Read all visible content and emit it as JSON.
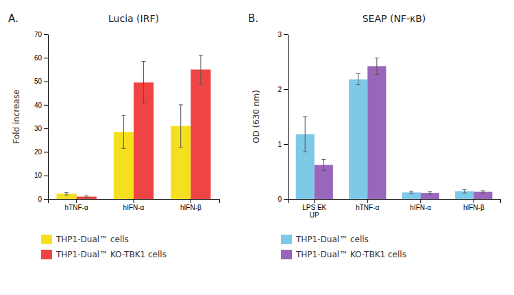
{
  "chart_data": [
    {
      "type": "bar",
      "title": "Lucia (IRF)",
      "ylabel": "Fold increase",
      "annotations": [
        "A."
      ],
      "categories": [
        "hTNF-α",
        "hIFN-α",
        "hIFN-β"
      ],
      "series": [
        {
          "name": "THP1-Dual™ cells",
          "color": "#f5e020",
          "values": [
            2.2,
            28.5,
            31.0
          ],
          "errors": [
            0.5,
            7.0,
            9.0
          ]
        },
        {
          "name": "THP1-Dual™ KO-TBK1 cells",
          "color": "#ee4444",
          "values": [
            1.0,
            49.5,
            55.0
          ],
          "errors": [
            0.3,
            9.0,
            6.0
          ]
        }
      ],
      "ylim": [
        0,
        70
      ],
      "yticks": [
        0,
        10,
        20,
        30,
        40,
        50,
        60,
        70
      ],
      "grid": false,
      "legend": "bottom"
    },
    {
      "type": "bar",
      "title": "SEAP (NF-κB)",
      "ylabel": "OD (630 nm)",
      "annotations": [
        "B."
      ],
      "categories": [
        "LPS EK\nUP",
        "hTNF-α",
        "hIFN-α",
        "hIFN-β"
      ],
      "series": [
        {
          "name": "THP1-Dual™ cells",
          "color": "#7ec8e8",
          "values": [
            1.18,
            2.18,
            0.12,
            0.14
          ],
          "errors": [
            0.32,
            0.1,
            0.02,
            0.03
          ]
        },
        {
          "name": "THP1-Dual™ KO-TBK1 cells",
          "color": "#9966bb",
          "values": [
            0.62,
            2.42,
            0.11,
            0.13
          ],
          "errors": [
            0.1,
            0.15,
            0.02,
            0.02
          ]
        }
      ],
      "ylim": [
        0,
        3
      ],
      "yticks": [
        0,
        1,
        2,
        3
      ],
      "grid": false,
      "legend": "bottom"
    }
  ]
}
